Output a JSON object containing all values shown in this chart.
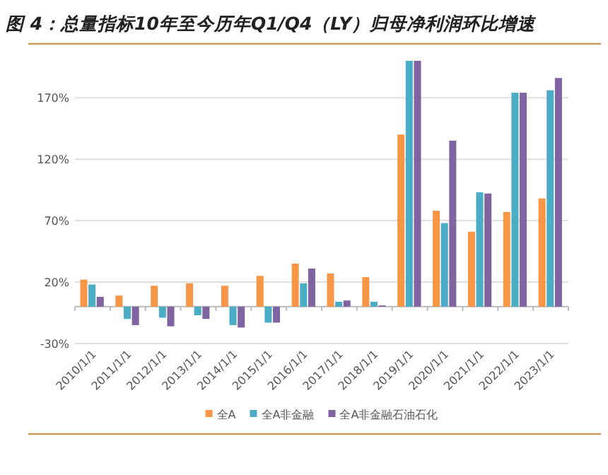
{
  "chart_data": {
    "type": "bar",
    "title": "图 4：总量指标10年至今历年Q1/Q4（LY）归母净利润环比增速",
    "categories": [
      "2010/1/1",
      "2011/1/1",
      "2012/1/1",
      "2013/1/1",
      "2014/1/1",
      "2015/1/1",
      "2016/1/1",
      "2017/1/1",
      "2018/1/1",
      "2019/1/1",
      "2020/1/1",
      "2021/1/1",
      "2022/1/1",
      "2023/1/1"
    ],
    "series": [
      {
        "name": "全A",
        "color": "#f79646",
        "values": [
          22,
          9,
          17,
          19,
          17,
          25,
          35,
          27,
          24,
          140,
          78,
          61,
          77,
          88
        ]
      },
      {
        "name": "全A非金融",
        "color": "#4bacc6",
        "values": [
          18,
          -10,
          -9,
          -7,
          -15,
          -13,
          19,
          4,
          4,
          200,
          68,
          93,
          174,
          176
        ]
      },
      {
        "name": "全A非金融石油石化",
        "color": "#8064a2",
        "values": [
          8,
          -15,
          -16,
          -10,
          -17,
          -13,
          31,
          5,
          1,
          200,
          135,
          92,
          174,
          186
        ]
      }
    ],
    "ylim": [
      -30,
      200
    ],
    "yticks": [
      {
        "value": -30,
        "label": "-30%"
      },
      {
        "value": 20,
        "label": "20%"
      },
      {
        "value": 70,
        "label": "70%"
      },
      {
        "value": 120,
        "label": "120%"
      },
      {
        "value": 170,
        "label": "170%"
      }
    ],
    "grid": "y",
    "legend": "bottom"
  }
}
